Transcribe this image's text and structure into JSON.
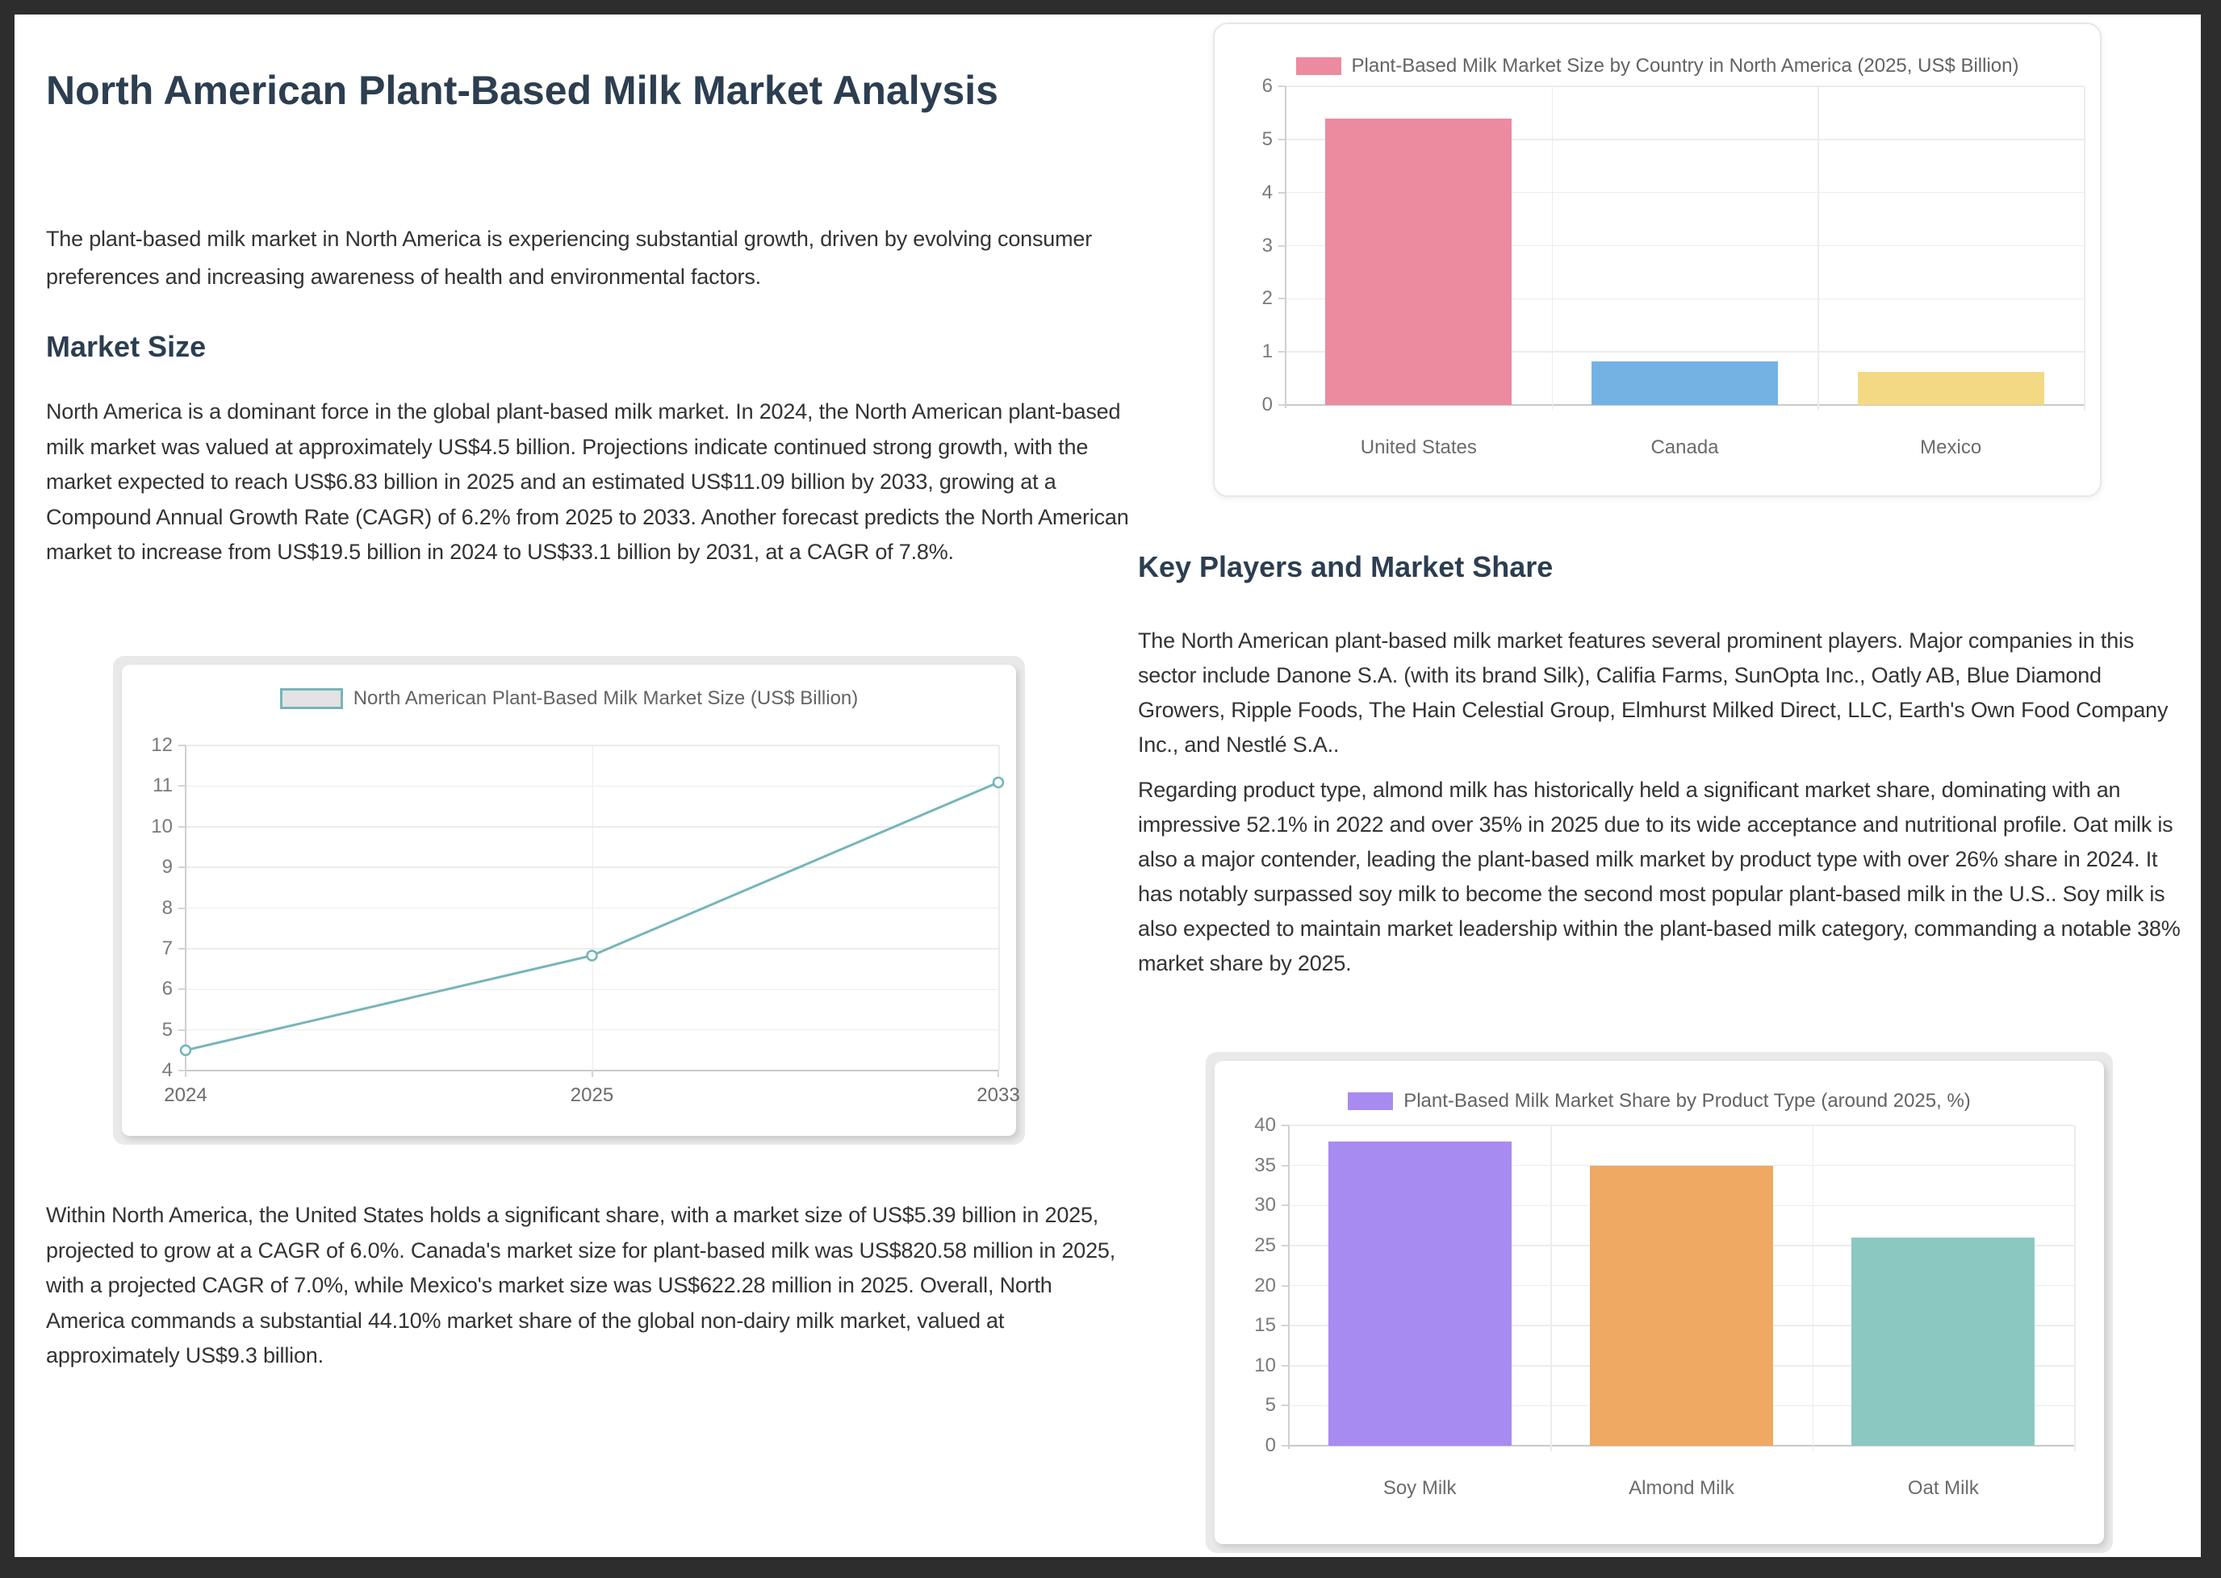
{
  "theme": {
    "frame_color": "#2d2d2d",
    "page_color": "#ffffff",
    "heading_color": "#2c3e50",
    "body_text_color": "#333333",
    "axis_text_color": "#7a7a7a",
    "legend_text_color": "#636363",
    "grid_color": "#ececec",
    "card_frame_color": "#e9e9e9"
  },
  "document": {
    "title": "North American Plant-Based Milk Market Analysis",
    "intro": "The plant-based milk market in North America is experiencing substantial growth, driven by evolving consumer preferences and increasing awareness of health and environmental factors.",
    "market_size": {
      "heading": "Market Size",
      "para_overview": "North America is a dominant force in the global plant-based milk market. In 2024, the North American plant-based milk market was valued at approximately US$4.5 billion. Projections indicate continued strong growth, with the market expected to reach US$6.83 billion in 2025 and an estimated US$11.09 billion by 2033, growing at a Compound Annual Growth Rate (CAGR) of 6.2% from 2025 to 2033. Another forecast predicts the North American market to increase from US$19.5 billion in 2024 to US$33.1 billion by 2031, at a CAGR of 7.8%.",
      "para_countries": "Within North America, the United States holds a significant share, with a market size of US$5.39 billion in 2025, projected to grow at a CAGR of 6.0%. Canada's market size for plant-based milk was US$820.58 million in 2025, with a projected CAGR of 7.0%, while Mexico's market size was US$622.28 million in 2025. Overall, North America commands a substantial 44.10% market share of the global non-dairy milk market, valued at approximately US$9.3 billion."
    },
    "key_players": {
      "heading": "Key Players and Market Share",
      "para_companies": "The North American plant-based milk market features several prominent players. Major companies in this sector include Danone S.A. (with its brand Silk), Califia Farms, SunOpta Inc., Oatly AB, Blue Diamond Growers, Ripple Foods, The Hain Celestial Group, Elmhurst Milked Direct, LLC, Earth's Own Food Company Inc., and Nestlé S.A..",
      "para_product_type": "Regarding product type, almond milk has historically held a significant market share, dominating with an impressive 52.1% in 2022 and over 35% in 2025 due to its wide acceptance and nutritional profile. Oat milk is also a major contender, leading the plant-based milk market by product type with over 26% share in 2024. It has notably surpassed soy milk to become the second most popular plant-based milk in the U.S.. Soy milk is also expected to maintain market leadership within the plant-based milk category, commanding a notable 38% market share by 2025."
    }
  },
  "chart_data": [
    {
      "id": "line-market-size",
      "type": "line",
      "legend": "North American Plant-Based Milk Market Size (US$ Billion)",
      "x": [
        "2024",
        "2025",
        "2033"
      ],
      "values": [
        4.5,
        6.83,
        11.09
      ],
      "ylim": [
        4,
        12
      ],
      "ytick_step": 1,
      "series_color": "#77b5b8",
      "legend_swatch_fill": "#e3e3e3",
      "grid": true,
      "legend_position": "top"
    },
    {
      "id": "bar-country",
      "type": "bar",
      "legend": "Plant-Based Milk Market Size by Country in North America (2025, US$ Billion)",
      "categories": [
        "United States",
        "Canada",
        "Mexico"
      ],
      "values": [
        5.39,
        0.82,
        0.62
      ],
      "bar_colors": [
        "#ec8aa0",
        "#74b2e4",
        "#f4d984"
      ],
      "legend_swatch_color": "#ec8aa0",
      "ylim": [
        0,
        6
      ],
      "ytick_step": 1,
      "grid": true,
      "legend_position": "top"
    },
    {
      "id": "bar-product",
      "type": "bar",
      "legend": "Plant-Based Milk Market Share by Product Type (around 2025, %)",
      "categories": [
        "Soy Milk",
        "Almond Milk",
        "Oat Milk"
      ],
      "values": [
        38,
        35,
        26
      ],
      "bar_colors": [
        "#a78bf0",
        "#efa963",
        "#8bc8c2"
      ],
      "legend_swatch_color": "#a78bf0",
      "ylim": [
        0,
        40
      ],
      "ytick_step": 5,
      "grid": true,
      "legend_position": "top"
    }
  ]
}
